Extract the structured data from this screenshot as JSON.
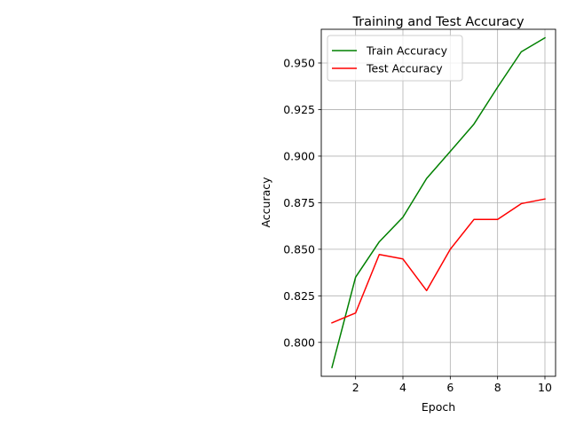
{
  "chart_data": {
    "type": "line",
    "title": "Training and Test Accuracy",
    "xlabel": "Epoch",
    "ylabel": "Accuracy",
    "x": [
      1,
      2,
      3,
      4,
      5,
      6,
      7,
      8,
      9,
      10
    ],
    "xlim": [
      0.55,
      10.45
    ],
    "ylim": [
      0.7818,
      0.9681
    ],
    "xticks": [
      2,
      4,
      6,
      8,
      10
    ],
    "xtick_labels": [
      "2",
      "4",
      "6",
      "8",
      "10"
    ],
    "yticks": [
      0.8,
      0.825,
      0.85,
      0.875,
      0.9,
      0.925,
      0.95
    ],
    "ytick_labels": [
      "0.800",
      "0.825",
      "0.850",
      "0.875",
      "0.900",
      "0.925",
      "0.950"
    ],
    "grid": true,
    "legend": "top-left",
    "series": [
      {
        "name": "Train Accuracy",
        "color": "#008000",
        "values": [
          0.7865,
          0.835,
          0.854,
          0.8672,
          0.888,
          0.9025,
          0.9172,
          0.937,
          0.956,
          0.9635
        ]
      },
      {
        "name": "Test Accuracy",
        "color": "#ff0000",
        "values": [
          0.8105,
          0.8158,
          0.8472,
          0.8448,
          0.8278,
          0.85,
          0.866,
          0.866,
          0.8745,
          0.877
        ]
      }
    ]
  }
}
